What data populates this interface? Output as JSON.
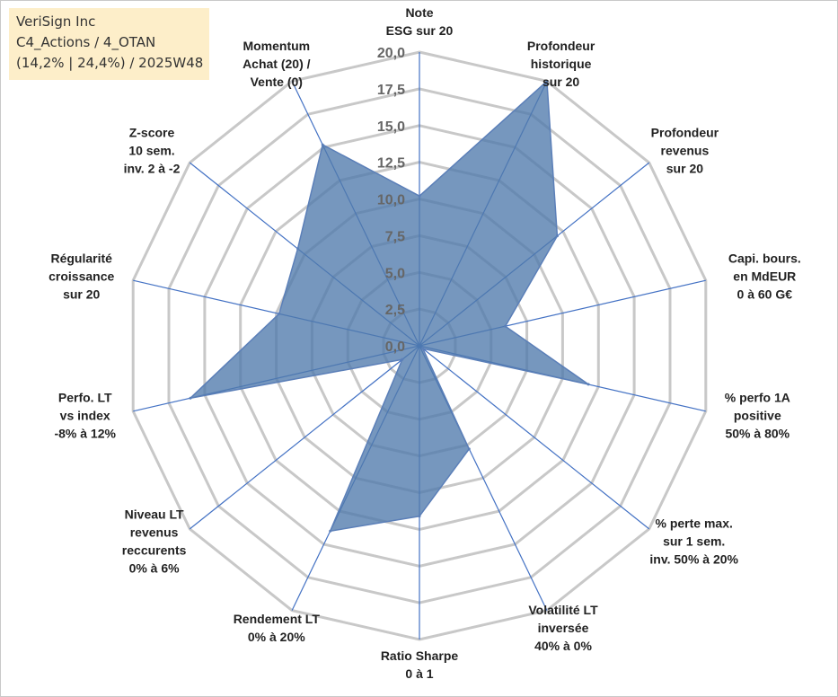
{
  "header": {
    "line1": "VeriSign Inc",
    "line2": "C4_Actions / 4_OTAN",
    "line3": "(14,2% | 24,4%) / 2025W48"
  },
  "colors": {
    "grid": "#c8c8c8",
    "spoke": "#4472c4",
    "fill": "#4f7aac",
    "stroke": "#5b7fb8"
  },
  "chart_data": {
    "type": "radar",
    "title": "",
    "rmin": 0,
    "rmax": 20,
    "tick_step": 2.5,
    "tick_labels": [
      "0,0",
      "2,5",
      "5,0",
      "7,5",
      "10,0",
      "12,5",
      "15,0",
      "17,5",
      "20,0"
    ],
    "axes": [
      {
        "label": [
          "Note",
          "ESG sur 20"
        ],
        "value": 10.2
      },
      {
        "label": [
          "Profondeur",
          "historique",
          "sur 20"
        ],
        "value": 20.0
      },
      {
        "label": [
          "Profondeur",
          "revenus",
          "sur 20"
        ],
        "value": 12.0
      },
      {
        "label": [
          "Capi. bours.",
          "en MdEUR",
          "0 à 60 G€"
        ],
        "value": 6.0
      },
      {
        "label": [
          "% perfo 1A",
          "positive",
          "50% à 80%"
        ],
        "value": 11.8
      },
      {
        "label": [
          "% perte max.",
          "sur 1 sem.",
          "inv. 50% à 20%"
        ],
        "value": 0.3
      },
      {
        "label": [
          "Volatilité LT",
          "inversée",
          "40% à 0%"
        ],
        "value": 7.8
      },
      {
        "label": [
          "Ratio Sharpe",
          "0 à 1"
        ],
        "value": 11.6
      },
      {
        "label": [
          "Rendement LT",
          "0% à 20%"
        ],
        "value": 14.0
      },
      {
        "label": [
          "Niveau LT",
          "revenus",
          "reccurents",
          "0% à 6%"
        ],
        "value": 1.5
      },
      {
        "label": [
          "Perfo. LT",
          "vs index",
          "-8% à 12%"
        ],
        "value": 16.0
      },
      {
        "label": [
          "Régularité",
          "croissance",
          "sur 20"
        ],
        "value": 9.8
      },
      {
        "label": [
          "Z-score",
          "10 sem.",
          "inv. 2 à -2"
        ],
        "value": 10.6
      },
      {
        "label": [
          "Momentum",
          "Achat (20) /",
          "Vente (0)"
        ],
        "value": 15.2
      }
    ]
  }
}
